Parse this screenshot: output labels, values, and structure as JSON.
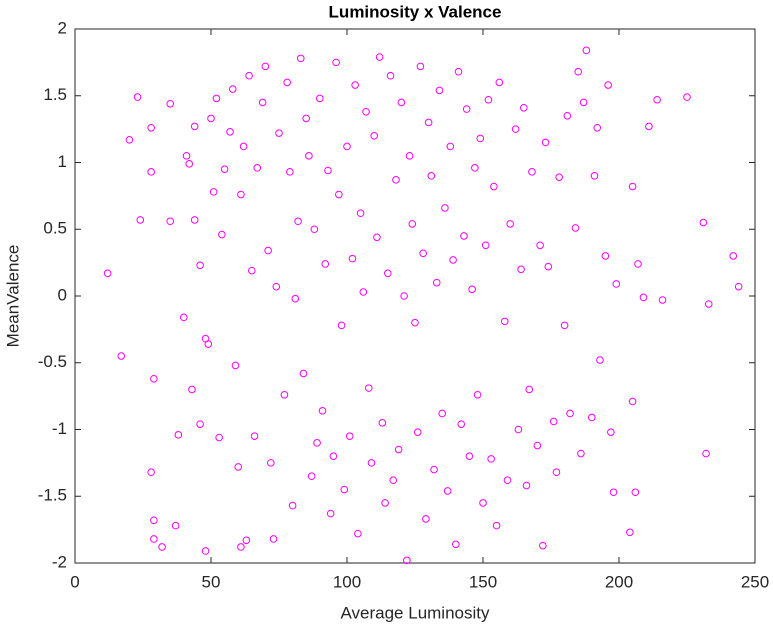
{
  "chart_data": {
    "type": "scatter",
    "title": "Luminosity x Valence",
    "xlabel": "Average Luminosity",
    "ylabel": "MeanValence",
    "color": "#ff00ff",
    "grid": false,
    "xlim": [
      0,
      250
    ],
    "ylim": [
      -2,
      2
    ],
    "xticks": [
      0,
      50,
      100,
      150,
      200,
      250
    ],
    "yticks": [
      -2,
      -1.5,
      -1,
      -0.5,
      0,
      0.5,
      1,
      1.5,
      2
    ],
    "x": [
      12,
      17,
      20,
      23,
      24,
      28,
      28,
      29,
      28,
      29,
      29,
      32,
      35,
      35,
      37,
      38,
      40,
      41,
      42,
      43,
      44,
      44,
      46,
      46,
      48,
      48,
      49,
      50,
      51,
      52,
      53,
      54,
      55,
      57,
      58,
      59,
      60,
      61,
      62,
      63,
      64,
      65,
      66,
      67,
      69,
      70,
      71,
      72,
      73,
      74,
      75,
      77,
      78,
      79,
      80,
      81,
      82,
      83,
      84,
      85,
      86,
      87,
      88,
      89,
      90,
      91,
      92,
      93,
      94,
      95,
      96,
      97,
      98,
      99,
      100,
      101,
      102,
      103,
      104,
      105,
      106,
      107,
      108,
      109,
      110,
      111,
      112,
      113,
      114,
      115,
      116,
      117,
      118,
      119,
      120,
      121,
      122,
      123,
      124,
      125,
      126,
      127,
      128,
      129,
      130,
      131,
      132,
      133,
      134,
      135,
      136,
      137,
      138,
      139,
      140,
      141,
      142,
      143,
      144,
      145,
      146,
      147,
      148,
      149,
      150,
      151,
      152,
      153,
      154,
      155,
      156,
      158,
      159,
      160,
      162,
      163,
      164,
      165,
      166,
      167,
      168,
      170,
      171,
      172,
      173,
      174,
      176,
      177,
      178,
      180,
      181,
      182,
      184,
      185,
      186,
      187,
      188,
      190,
      191,
      192,
      193,
      195,
      196,
      197,
      198,
      199,
      205,
      205,
      206,
      207,
      209,
      211,
      214,
      216,
      225,
      231,
      232,
      233,
      242,
      244,
      204,
      61
    ],
    "y": [
      0.17,
      -0.45,
      1.17,
      1.49,
      0.57,
      0.93,
      1.26,
      -0.62,
      -1.32,
      -1.68,
      -1.82,
      -1.88,
      1.44,
      0.56,
      -1.72,
      -1.04,
      -0.16,
      1.05,
      0.99,
      -0.7,
      0.57,
      1.27,
      0.23,
      -0.96,
      -0.32,
      -1.91,
      -0.36,
      1.33,
      0.78,
      1.48,
      -1.06,
      0.46,
      0.95,
      1.23,
      1.55,
      -0.52,
      -1.28,
      0.76,
      1.12,
      -1.83,
      1.65,
      0.19,
      -1.05,
      0.96,
      1.45,
      1.72,
      0.34,
      -1.25,
      -1.82,
      0.07,
      1.22,
      -0.74,
      1.6,
      0.93,
      -1.57,
      -0.02,
      0.56,
      1.78,
      -0.58,
      1.33,
      1.05,
      -1.35,
      0.5,
      -1.1,
      1.48,
      -0.86,
      0.24,
      0.94,
      -1.63,
      -1.2,
      1.75,
      0.76,
      -0.22,
      -1.45,
      1.12,
      -1.05,
      0.28,
      1.58,
      -1.78,
      0.62,
      0.03,
      1.38,
      -0.69,
      -1.25,
      1.2,
      0.44,
      1.79,
      -0.95,
      -1.55,
      0.17,
      1.65,
      -1.38,
      0.87,
      -1.15,
      1.45,
      0.0,
      -1.98,
      1.05,
      0.54,
      -0.2,
      -1.02,
      1.72,
      0.32,
      -1.67,
      1.3,
      0.9,
      -1.3,
      0.1,
      1.54,
      -0.88,
      0.66,
      -1.46,
      1.12,
      0.27,
      -1.86,
      1.68,
      -0.96,
      0.45,
      1.4,
      -1.2,
      0.05,
      0.96,
      -0.74,
      1.18,
      -1.55,
      0.38,
      1.47,
      -1.22,
      0.82,
      -1.72,
      1.6,
      -0.19,
      -1.38,
      0.54,
      1.25,
      -1.0,
      0.2,
      1.41,
      -1.42,
      -0.7,
      0.93,
      -1.12,
      0.38,
      -1.87,
      1.15,
      0.22,
      -0.94,
      -1.32,
      0.89,
      -0.22,
      1.35,
      -0.88,
      0.51,
      1.68,
      -1.18,
      1.45,
      1.84,
      -0.91,
      0.9,
      1.26,
      -0.48,
      0.3,
      1.58,
      -1.02,
      -1.47,
      0.09,
      0.82,
      -0.79,
      -1.47,
      0.24,
      -0.01,
      1.27,
      1.47,
      -0.03,
      1.49,
      0.55,
      -1.18,
      -0.06,
      0.3,
      0.07,
      -1.77,
      -1.88
    ]
  }
}
